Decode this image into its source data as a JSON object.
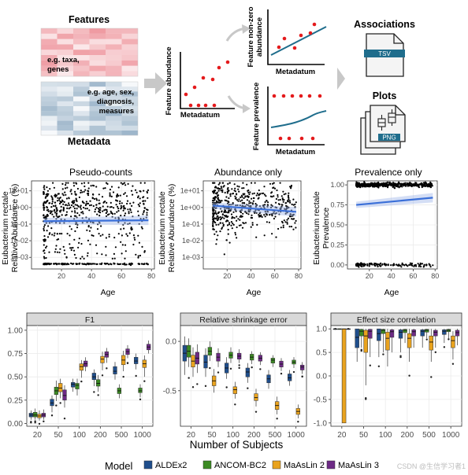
{
  "schematic": {
    "features_title": "Features",
    "features_note": [
      "e.g. taxa,",
      "genes"
    ],
    "metadata_title": "Metadata",
    "metadata_note": [
      "e.g. age, sex,",
      "diagnosis,",
      "measures"
    ],
    "abundance_ylabel": "Feature abundance",
    "abundance_xlabel": "Metadatum",
    "nonzero_ylabel": [
      "Feature non-zero",
      "abundance"
    ],
    "nonzero_xlabel": "Metadatum",
    "prevalence_ylabel": "Feature prevalence",
    "prevalence_xlabel": "Metadatum",
    "associations_title": "Associations",
    "associations_badge": "TSV",
    "plots_title": "Plots",
    "plots_badge": "PNG",
    "colors": {
      "features_heat": "#e8707a",
      "metadata_heat": "#5e86a8",
      "point": "#e41a1c",
      "fit_line": "#1f6d8c",
      "badge": "#1f6d8c"
    }
  },
  "chart_data": [
    {
      "type": "scatter",
      "title": "Pseudo-counts",
      "xlabel": "Age",
      "ylabel": [
        "Eubacterium rectale",
        "Relative Abundance (%)"
      ],
      "xlim": [
        0,
        82
      ],
      "x_ticks": [
        20,
        40,
        60,
        80
      ],
      "y_scale": "log10",
      "ylim": [
        0.0002,
        40
      ],
      "y_ticks": [
        {
          "v": 10,
          "label": "1e+01"
        },
        {
          "v": 1,
          "label": "1e+00"
        },
        {
          "v": 0.1,
          "label": "1e-01"
        },
        {
          "v": 0.01,
          "label": "1e-02"
        },
        {
          "v": 0.001,
          "label": "1e-03"
        }
      ],
      "description": "dense scatter of ~800 samples; zeros plotted at pseudo-count floor",
      "fit": {
        "x": [
          8,
          78
        ],
        "y": [
          0.15,
          0.17
        ]
      },
      "grid": true
    },
    {
      "type": "scatter",
      "title": "Abundance only",
      "xlabel": "Age",
      "ylabel": [
        "Eubacterium rectale",
        "Relative Abundance (%)"
      ],
      "xlim": [
        0,
        82
      ],
      "x_ticks": [
        20,
        40,
        60,
        80
      ],
      "y_scale": "log10",
      "ylim": [
        0.0002,
        40
      ],
      "y_ticks": [
        {
          "v": 10,
          "label": "1e+01"
        },
        {
          "v": 1,
          "label": "1e+00"
        },
        {
          "v": 0.1,
          "label": "1e-01"
        },
        {
          "v": 0.01,
          "label": "1e-02"
        },
        {
          "v": 0.001,
          "label": "1e-03"
        }
      ],
      "fit": {
        "x": [
          8,
          78
        ],
        "y": [
          1.3,
          0.55
        ]
      },
      "grid": true
    },
    {
      "type": "scatter",
      "title": "Prevalence only",
      "xlabel": "Age",
      "ylabel": [
        "Eubacterium rectale",
        "Prevalence"
      ],
      "xlim": [
        0,
        82
      ],
      "x_ticks": [
        20,
        40,
        60,
        80
      ],
      "ylim": [
        -0.05,
        1.05
      ],
      "y_ticks": [
        {
          "v": 1,
          "label": "1.00"
        },
        {
          "v": 0.75,
          "label": "0.75"
        },
        {
          "v": 0.5,
          "label": "0.50"
        },
        {
          "v": 0.25,
          "label": "0.25"
        },
        {
          "v": 0,
          "label": "0.00"
        }
      ],
      "fit": {
        "x": [
          8,
          78
        ],
        "y": [
          0.75,
          0.84
        ]
      },
      "grid": true
    },
    {
      "type": "box",
      "title": "F1",
      "categories": [
        "20",
        "50",
        "100",
        "200",
        "500",
        "1000"
      ],
      "ylim": [
        -0.03,
        1.05
      ],
      "y_ticks": [
        0,
        0.25,
        0.5,
        0.75,
        1
      ],
      "y_tick_labels": [
        "0.00",
        "0.25",
        "0.50",
        "0.75",
        "1.00"
      ],
      "series": [
        {
          "name": "ALDEx2",
          "color": "#1f4e8c",
          "boxes": [
            [
              0.04,
              0.07,
              0.09,
              0.11,
              0.14
            ],
            [
              0.12,
              0.19,
              0.22,
              0.26,
              0.3
            ],
            [
              0.34,
              0.39,
              0.42,
              0.44,
              0.48
            ],
            [
              0.4,
              0.47,
              0.5,
              0.54,
              0.58
            ],
            [
              0.47,
              0.53,
              0.56,
              0.61,
              0.66
            ],
            [
              0.58,
              0.64,
              0.67,
              0.71,
              0.75
            ]
          ]
        },
        {
          "name": "ANCOM-BC2",
          "color": "#3b8a23",
          "boxes": [
            [
              0.04,
              0.07,
              0.09,
              0.12,
              0.16
            ],
            [
              0.24,
              0.31,
              0.35,
              0.39,
              0.46
            ],
            [
              0.3,
              0.37,
              0.41,
              0.43,
              0.48
            ],
            [
              0.34,
              0.4,
              0.43,
              0.47,
              0.52
            ],
            [
              0.27,
              0.32,
              0.35,
              0.38,
              0.42
            ],
            [
              0.28,
              0.33,
              0.35,
              0.38,
              0.42
            ]
          ]
        },
        {
          "name": "MaAsLin 2",
          "color": "#e9a31e",
          "boxes": [
            [
              0.03,
              0.06,
              0.08,
              0.1,
              0.14
            ],
            [
              0.27,
              0.34,
              0.38,
              0.43,
              0.48
            ],
            [
              0.49,
              0.57,
              0.61,
              0.64,
              0.68
            ],
            [
              0.57,
              0.65,
              0.69,
              0.72,
              0.77
            ],
            [
              0.56,
              0.63,
              0.68,
              0.73,
              0.78
            ],
            [
              0.5,
              0.6,
              0.64,
              0.68,
              0.73
            ]
          ]
        },
        {
          "name": "MaAsLin 3",
          "color": "#6d2a85",
          "boxes": [
            [
              0.04,
              0.07,
              0.09,
              0.11,
              0.15
            ],
            [
              0.17,
              0.25,
              0.3,
              0.36,
              0.41
            ],
            [
              0.56,
              0.61,
              0.64,
              0.67,
              0.71
            ],
            [
              0.65,
              0.71,
              0.74,
              0.77,
              0.81
            ],
            [
              0.7,
              0.74,
              0.77,
              0.8,
              0.84
            ],
            [
              0.75,
              0.79,
              0.82,
              0.85,
              0.89
            ]
          ]
        }
      ]
    },
    {
      "type": "box",
      "title": "Relative shrinkage error",
      "categories": [
        "20",
        "50",
        "100",
        "200",
        "500",
        "1000"
      ],
      "ylim": [
        -0.86,
        0.16
      ],
      "y_ticks": [
        -0.5,
        0.0
      ],
      "y_tick_labels": [
        "-0.5",
        "0.0"
      ],
      "series": [
        {
          "name": "ALDEx2",
          "color": "#1f4e8c",
          "boxes": [
            [
              -0.34,
              -0.2,
              -0.12,
              -0.04,
              0.05
            ],
            [
              -0.36,
              -0.27,
              -0.21,
              -0.14,
              -0.07
            ],
            [
              -0.38,
              -0.32,
              -0.27,
              -0.22,
              -0.16
            ],
            [
              -0.42,
              -0.36,
              -0.31,
              -0.27,
              -0.22
            ],
            [
              -0.48,
              -0.42,
              -0.38,
              -0.34,
              -0.29
            ],
            [
              -0.45,
              -0.4,
              -0.37,
              -0.33,
              -0.29
            ]
          ]
        },
        {
          "name": "ANCOM-BC2",
          "color": "#3b8a23",
          "boxes": [
            [
              -0.26,
              -0.16,
              -0.1,
              -0.04,
              0.03
            ],
            [
              -0.2,
              -0.14,
              -0.1,
              -0.06,
              0.0
            ],
            [
              -0.22,
              -0.17,
              -0.14,
              -0.11,
              -0.06
            ],
            [
              -0.23,
              -0.19,
              -0.16,
              -0.13,
              -0.1
            ],
            [
              -0.26,
              -0.22,
              -0.19,
              -0.17,
              -0.14
            ],
            [
              -0.27,
              -0.23,
              -0.21,
              -0.19,
              -0.16
            ]
          ]
        },
        {
          "name": "MaAsLin 2",
          "color": "#e9a31e",
          "boxes": [
            [
              -0.36,
              -0.26,
              -0.2,
              -0.14,
              -0.06
            ],
            [
              -0.52,
              -0.45,
              -0.4,
              -0.35,
              -0.28
            ],
            [
              -0.58,
              -0.53,
              -0.49,
              -0.46,
              -0.41
            ],
            [
              -0.66,
              -0.6,
              -0.57,
              -0.53,
              -0.48
            ],
            [
              -0.74,
              -0.69,
              -0.65,
              -0.61,
              -0.56
            ],
            [
              -0.78,
              -0.74,
              -0.71,
              -0.68,
              -0.64
            ]
          ]
        },
        {
          "name": "MaAsLin 3",
          "color": "#6d2a85",
          "boxes": [
            [
              -0.32,
              -0.23,
              -0.17,
              -0.11,
              -0.03
            ],
            [
              -0.26,
              -0.2,
              -0.16,
              -0.12,
              -0.07
            ],
            [
              -0.22,
              -0.18,
              -0.15,
              -0.12,
              -0.08
            ],
            [
              -0.24,
              -0.2,
              -0.17,
              -0.14,
              -0.11
            ],
            [
              -0.3,
              -0.26,
              -0.23,
              -0.2,
              -0.17
            ],
            [
              -0.33,
              -0.29,
              -0.26,
              -0.24,
              -0.21
            ]
          ]
        }
      ]
    },
    {
      "type": "box",
      "title": "Effect size correlation",
      "categories": [
        "20",
        "50",
        "100",
        "200",
        "500",
        "1000"
      ],
      "ylim": [
        -1.07,
        1.07
      ],
      "y_ticks": [
        -1,
        -0.5,
        0,
        0.5,
        1
      ],
      "y_tick_labels": [
        "-1.0",
        "-0.5",
        "0.0",
        "0.5",
        "1.0"
      ],
      "series": [
        {
          "name": "ALDEx2",
          "color": "#1f4e8c",
          "boxes": [
            [
              1,
              1,
              1,
              1,
              1
            ],
            [
              0.3,
              0.6,
              0.82,
              1,
              1
            ],
            [
              0.4,
              0.75,
              0.9,
              1,
              1
            ],
            [
              0.5,
              0.8,
              0.93,
              0.98,
              1
            ],
            [
              0.6,
              0.85,
              0.95,
              0.98,
              1
            ],
            [
              0.7,
              0.88,
              0.95,
              0.98,
              1
            ]
          ]
        },
        {
          "name": "ANCOM-BC2",
          "color": "#3b8a23",
          "boxes": [
            [
              1,
              1,
              1,
              1,
              1
            ],
            [
              0.6,
              0.85,
              0.95,
              0.99,
              1
            ],
            [
              0.5,
              0.9,
              0.97,
              0.99,
              1
            ],
            [
              0.7,
              0.92,
              0.97,
              0.99,
              1
            ],
            [
              0.8,
              0.93,
              0.97,
              0.99,
              1
            ],
            [
              0.8,
              0.94,
              0.97,
              0.99,
              1
            ]
          ]
        },
        {
          "name": "MaAsLin 2",
          "color": "#e9a31e",
          "boxes": [
            [
              -1,
              -1,
              1,
              1,
              1
            ],
            [
              -0.2,
              0.5,
              0.85,
              0.97,
              1
            ],
            [
              0.2,
              0.55,
              0.8,
              0.93,
              1
            ],
            [
              0.3,
              0.6,
              0.8,
              0.9,
              1
            ],
            [
              0.3,
              0.55,
              0.72,
              0.85,
              1
            ],
            [
              0.35,
              0.6,
              0.75,
              0.85,
              0.95
            ]
          ]
        },
        {
          "name": "MaAsLin 3",
          "color": "#6d2a85",
          "boxes": [
            [
              1,
              1,
              1,
              1,
              1
            ],
            [
              0.4,
              0.8,
              0.95,
              0.99,
              1
            ],
            [
              0.5,
              0.82,
              0.94,
              0.98,
              1
            ],
            [
              0.6,
              0.85,
              0.94,
              0.98,
              1
            ],
            [
              0.6,
              0.85,
              0.93,
              0.97,
              1
            ],
            [
              0.65,
              0.85,
              0.92,
              0.97,
              1
            ]
          ]
        }
      ]
    }
  ],
  "shared": {
    "x_axis_title": "Number of Subjects",
    "legend_title": "Model",
    "legend": [
      {
        "name": "ALDEx2",
        "color": "#1f4e8c"
      },
      {
        "name": "ANCOM-BC2",
        "color": "#3b8a23"
      },
      {
        "name": "MaAsLin 2",
        "color": "#e9a31e"
      },
      {
        "name": "MaAsLin 3",
        "color": "#6d2a85"
      }
    ],
    "fit_color": "#3a6fd8",
    "watermark": "CSDN @生信学习者1"
  }
}
